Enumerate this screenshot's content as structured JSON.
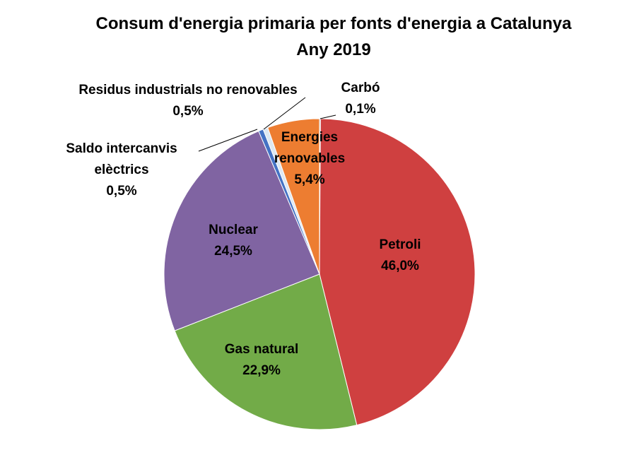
{
  "chart_data": {
    "type": "pie",
    "title": "Consum d'energia primaria per fonts d'energia a Catalunya",
    "subtitle": "Any 2019",
    "colors": {
      "Carbó": "#8c8c8c",
      "Petroli": "#cf4040",
      "Gas natural": "#72ab48",
      "Nuclear": "#8064a2",
      "Saldo intercanvis elèctrics": "#4472c4",
      "Residus industrials no renovables": "#dde8f2",
      "Energies renovables": "#ed7d31"
    },
    "slices": [
      {
        "name": "Carbó",
        "value": 0.1,
        "label_lines": [
          "Carbó"
        ],
        "value_label": "0,1%"
      },
      {
        "name": "Petroli",
        "value": 46.0,
        "label_lines": [
          "Petroli"
        ],
        "value_label": "46,0%"
      },
      {
        "name": "Gas natural",
        "value": 22.9,
        "label_lines": [
          "Gas natural"
        ],
        "value_label": "22,9%"
      },
      {
        "name": "Nuclear",
        "value": 24.5,
        "label_lines": [
          "Nuclear"
        ],
        "value_label": "24,5%"
      },
      {
        "name": "Saldo intercanvis elèctrics",
        "value": 0.5,
        "label_lines": [
          "Saldo intercanvis",
          "elèctrics"
        ],
        "value_label": "0,5%"
      },
      {
        "name": "Residus industrials no renovables",
        "value": 0.5,
        "label_lines": [
          "Residus industrials no renovables"
        ],
        "value_label": "0,5%"
      },
      {
        "name": "Energies renovables",
        "value": 5.4,
        "label_lines": [
          "Energies",
          "renovables"
        ],
        "value_label": "5,4%"
      }
    ]
  }
}
